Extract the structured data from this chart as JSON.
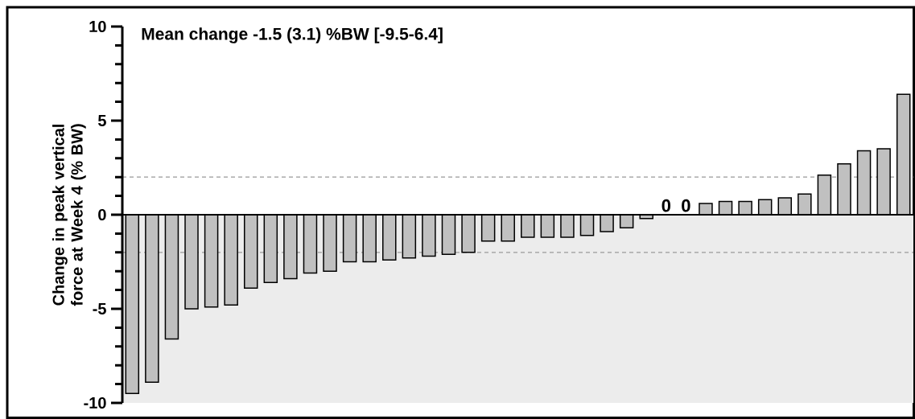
{
  "chart_data": {
    "type": "bar",
    "title": "Mean change -1.5 (3.1) %BW [-9.5-6.4]",
    "ylabel": "Change in peak vertical force at Week 4 (% BW)",
    "categories": [
      null,
      null,
      null,
      null,
      null,
      null,
      null,
      null,
      null,
      null,
      null,
      null,
      null,
      null,
      null,
      null,
      null,
      null,
      null,
      null,
      null,
      null,
      null,
      null,
      null,
      null,
      null,
      null,
      null,
      null,
      null,
      null,
      null,
      null,
      null,
      null,
      null,
      null,
      null,
      null
    ],
    "values": [
      -9.5,
      -8.9,
      -6.6,
      -5.0,
      -4.9,
      -4.8,
      -3.9,
      -3.6,
      -3.4,
      -3.1,
      -3.0,
      -2.5,
      -2.5,
      -2.4,
      -2.3,
      -2.2,
      -2.1,
      -2.0,
      -1.4,
      -1.4,
      -1.2,
      -1.2,
      -1.2,
      -1.1,
      -0.9,
      -0.7,
      -0.2,
      0,
      0,
      0.6,
      0.7,
      0.7,
      0.8,
      0.9,
      1.1,
      2.1,
      2.7,
      3.4,
      3.5,
      6.4
    ],
    "value_labels": [
      null,
      null,
      null,
      null,
      null,
      null,
      null,
      null,
      null,
      null,
      null,
      null,
      null,
      null,
      null,
      null,
      null,
      null,
      null,
      null,
      null,
      null,
      null,
      null,
      null,
      null,
      null,
      "0",
      "0",
      null,
      null,
      null,
      null,
      null,
      null,
      null,
      null,
      null,
      null,
      null
    ],
    "color": "#c0c0c0",
    "ylim": [
      -10,
      10
    ],
    "yticks": [
      -10,
      {
        "value": -9,
        "label": null
      },
      {
        "value": -8,
        "label": null
      },
      {
        "value": -7,
        "label": null
      },
      {
        "value": -6,
        "label": null
      },
      -5,
      {
        "value": -4,
        "label": null
      },
      {
        "value": -3,
        "label": null
      },
      {
        "value": -2,
        "label": null
      },
      {
        "value": -1,
        "label": null
      },
      0,
      {
        "value": 1,
        "label": null
      },
      {
        "value": 2,
        "label": null
      },
      {
        "value": 3,
        "label": null
      },
      {
        "value": 4,
        "label": null
      },
      5,
      {
        "value": 6,
        "label": null
      },
      {
        "value": 7,
        "label": null
      },
      {
        "value": 8,
        "label": null
      },
      {
        "value": 9,
        "label": null
      },
      10
    ],
    "tick_labels": "y",
    "ref_lines": [
      {
        "axis": "y",
        "value": 2,
        "color": "#999999",
        "line_style": "dashed"
      },
      {
        "axis": "y",
        "value": -2,
        "color": "#999999",
        "line_style": "dashed"
      }
    ],
    "bands": [
      {
        "axis": "y",
        "from": -10,
        "to": 0,
        "color": "#ececec"
      }
    ]
  }
}
